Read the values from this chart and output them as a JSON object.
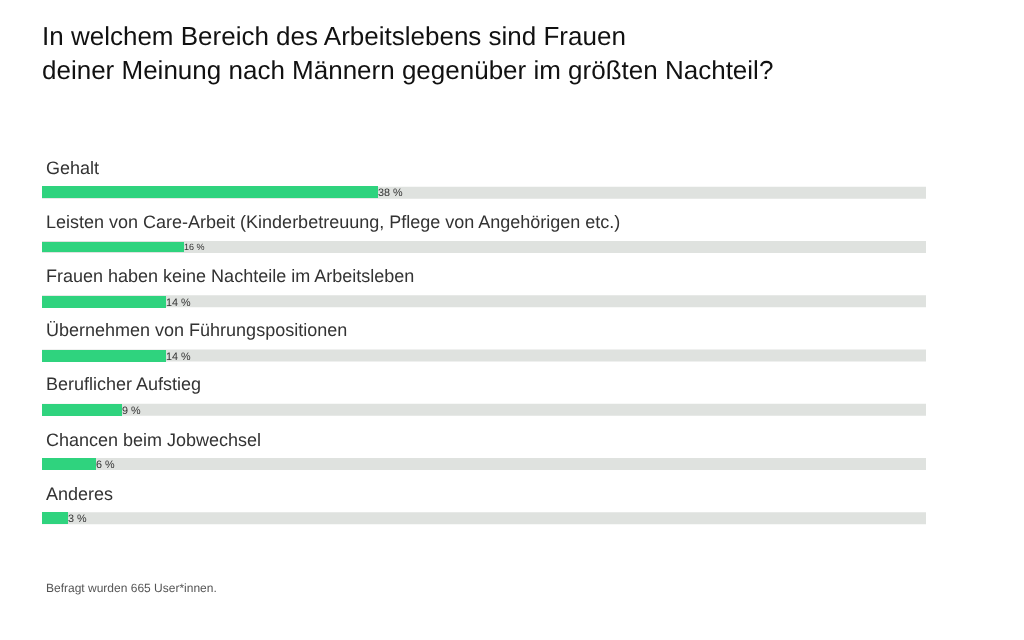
{
  "chart_data": {
    "type": "bar",
    "orientation": "horizontal",
    "title": "In welchem Bereich des Arbeitslebens sind Frauen\ndeiner Meinung nach Männern gegenüber im größten Nachteil?",
    "categories": [
      "Gehalt",
      "Leisten von Care-Arbeit (Kinderbetreuung, Pflege von Angehörigen etc.)",
      "Frauen haben keine Nachteile im Arbeitsleben",
      "Übernehmen von Führungspositionen",
      "Beruflicher Aufstieg",
      "Chancen beim Jobwechsel",
      "Anderes"
    ],
    "values": [
      38,
      16,
      14,
      14,
      9,
      6,
      3
    ],
    "value_labels": [
      "38 %",
      "16 %",
      "14 %",
      "14 %",
      "9 %",
      "6 %",
      "3 %"
    ],
    "color": "#2fd37e",
    "xlim": [
      0,
      100
    ],
    "tick_labels": false,
    "grid": false,
    "annotations": [
      "Befragt wurden 665 User*innen."
    ]
  }
}
